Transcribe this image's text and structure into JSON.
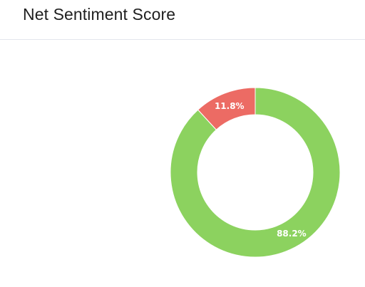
{
  "card": {
    "title": "Net Sentiment Score"
  },
  "chart_data": {
    "type": "pie",
    "donut": true,
    "labels": [
      "11.8%",
      "88.2%"
    ],
    "values": [
      11.8,
      88.2
    ],
    "colors": [
      "#ec6b64",
      "#8cd25f"
    ],
    "legend": "none",
    "title": ""
  }
}
